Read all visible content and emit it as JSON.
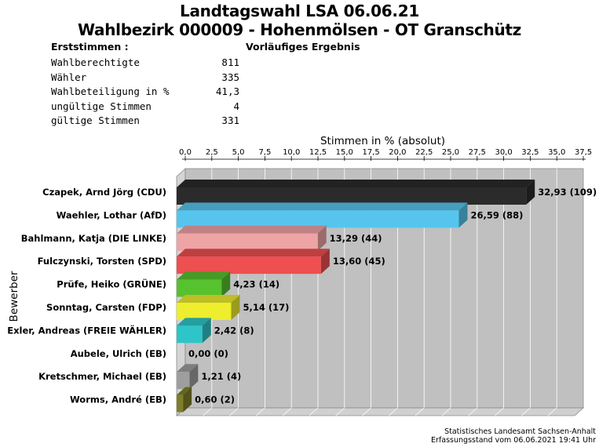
{
  "header": {
    "title": "Landtagswahl LSA 06.06.21",
    "subtitle": "Wahlbezirk 000009 - Hohenmölsen - OT Granschütz",
    "left_label": "Erststimmen   :",
    "right_label": "Vorläufiges Ergebnis"
  },
  "stats": [
    {
      "label": "Wahlberechtigte",
      "value": "811"
    },
    {
      "label": "Wähler",
      "value": "335"
    },
    {
      "label": "Wahlbeteiligung in %",
      "value": "41,3"
    },
    {
      "label": "ungültige Stimmen",
      "value": "4"
    },
    {
      "label": "gültige Stimmen",
      "value": "331"
    }
  ],
  "footer": {
    "line1": "Statistisches Landesamt Sachsen-Anhalt",
    "line2": "Erfassungsstand vom 06.06.2021 19:41 Uhr"
  },
  "chart_data": {
    "type": "bar",
    "orientation": "horizontal",
    "title": "Stimmen in % (absolut)",
    "ylabel": "Bewerber",
    "xlim": [
      0,
      37.5
    ],
    "ticks": [
      "0,0",
      "2,5",
      "5,0",
      "7,5",
      "10,0",
      "12,5",
      "15,0",
      "17,5",
      "20,0",
      "22,5",
      "25,0",
      "27,5",
      "30,0",
      "32,5",
      "35,0",
      "37,5"
    ],
    "grid": true,
    "categories": [
      "Czapek, Arnd Jörg (CDU)",
      "Waehler, Lothar (AfD)",
      "Bahlmann, Katja (DIE LINKE)",
      "Fulczynski, Torsten (SPD)",
      "Prüfe, Heiko (GRÜNE)",
      "Sonntag, Carsten (FDP)",
      "Exler, Andreas (FREIE WÄHLER)",
      "Aubele, Ulrich (EB)",
      "Kretschmer, Michael (EB)",
      "Worms, André (EB)"
    ],
    "values": [
      32.93,
      26.59,
      13.29,
      13.6,
      4.23,
      5.14,
      2.42,
      0.0,
      1.21,
      0.6
    ],
    "labels": [
      "32,93 (109)",
      "26,59 (88)",
      "13,29 (44)",
      "13,60 (45)",
      "4,23 (14)",
      "5,14 (17)",
      "2,42 (8)",
      "0,00 (0)",
      "1,21 (4)",
      "0,60 (2)"
    ],
    "colors": [
      "#2b2b2b",
      "#56c5ee",
      "#eea3a5",
      "#ee4f50",
      "#56c22e",
      "#eeee2e",
      "#2ec5c8",
      "#999999",
      "#9e9e9e",
      "#7e7e2b"
    ]
  }
}
